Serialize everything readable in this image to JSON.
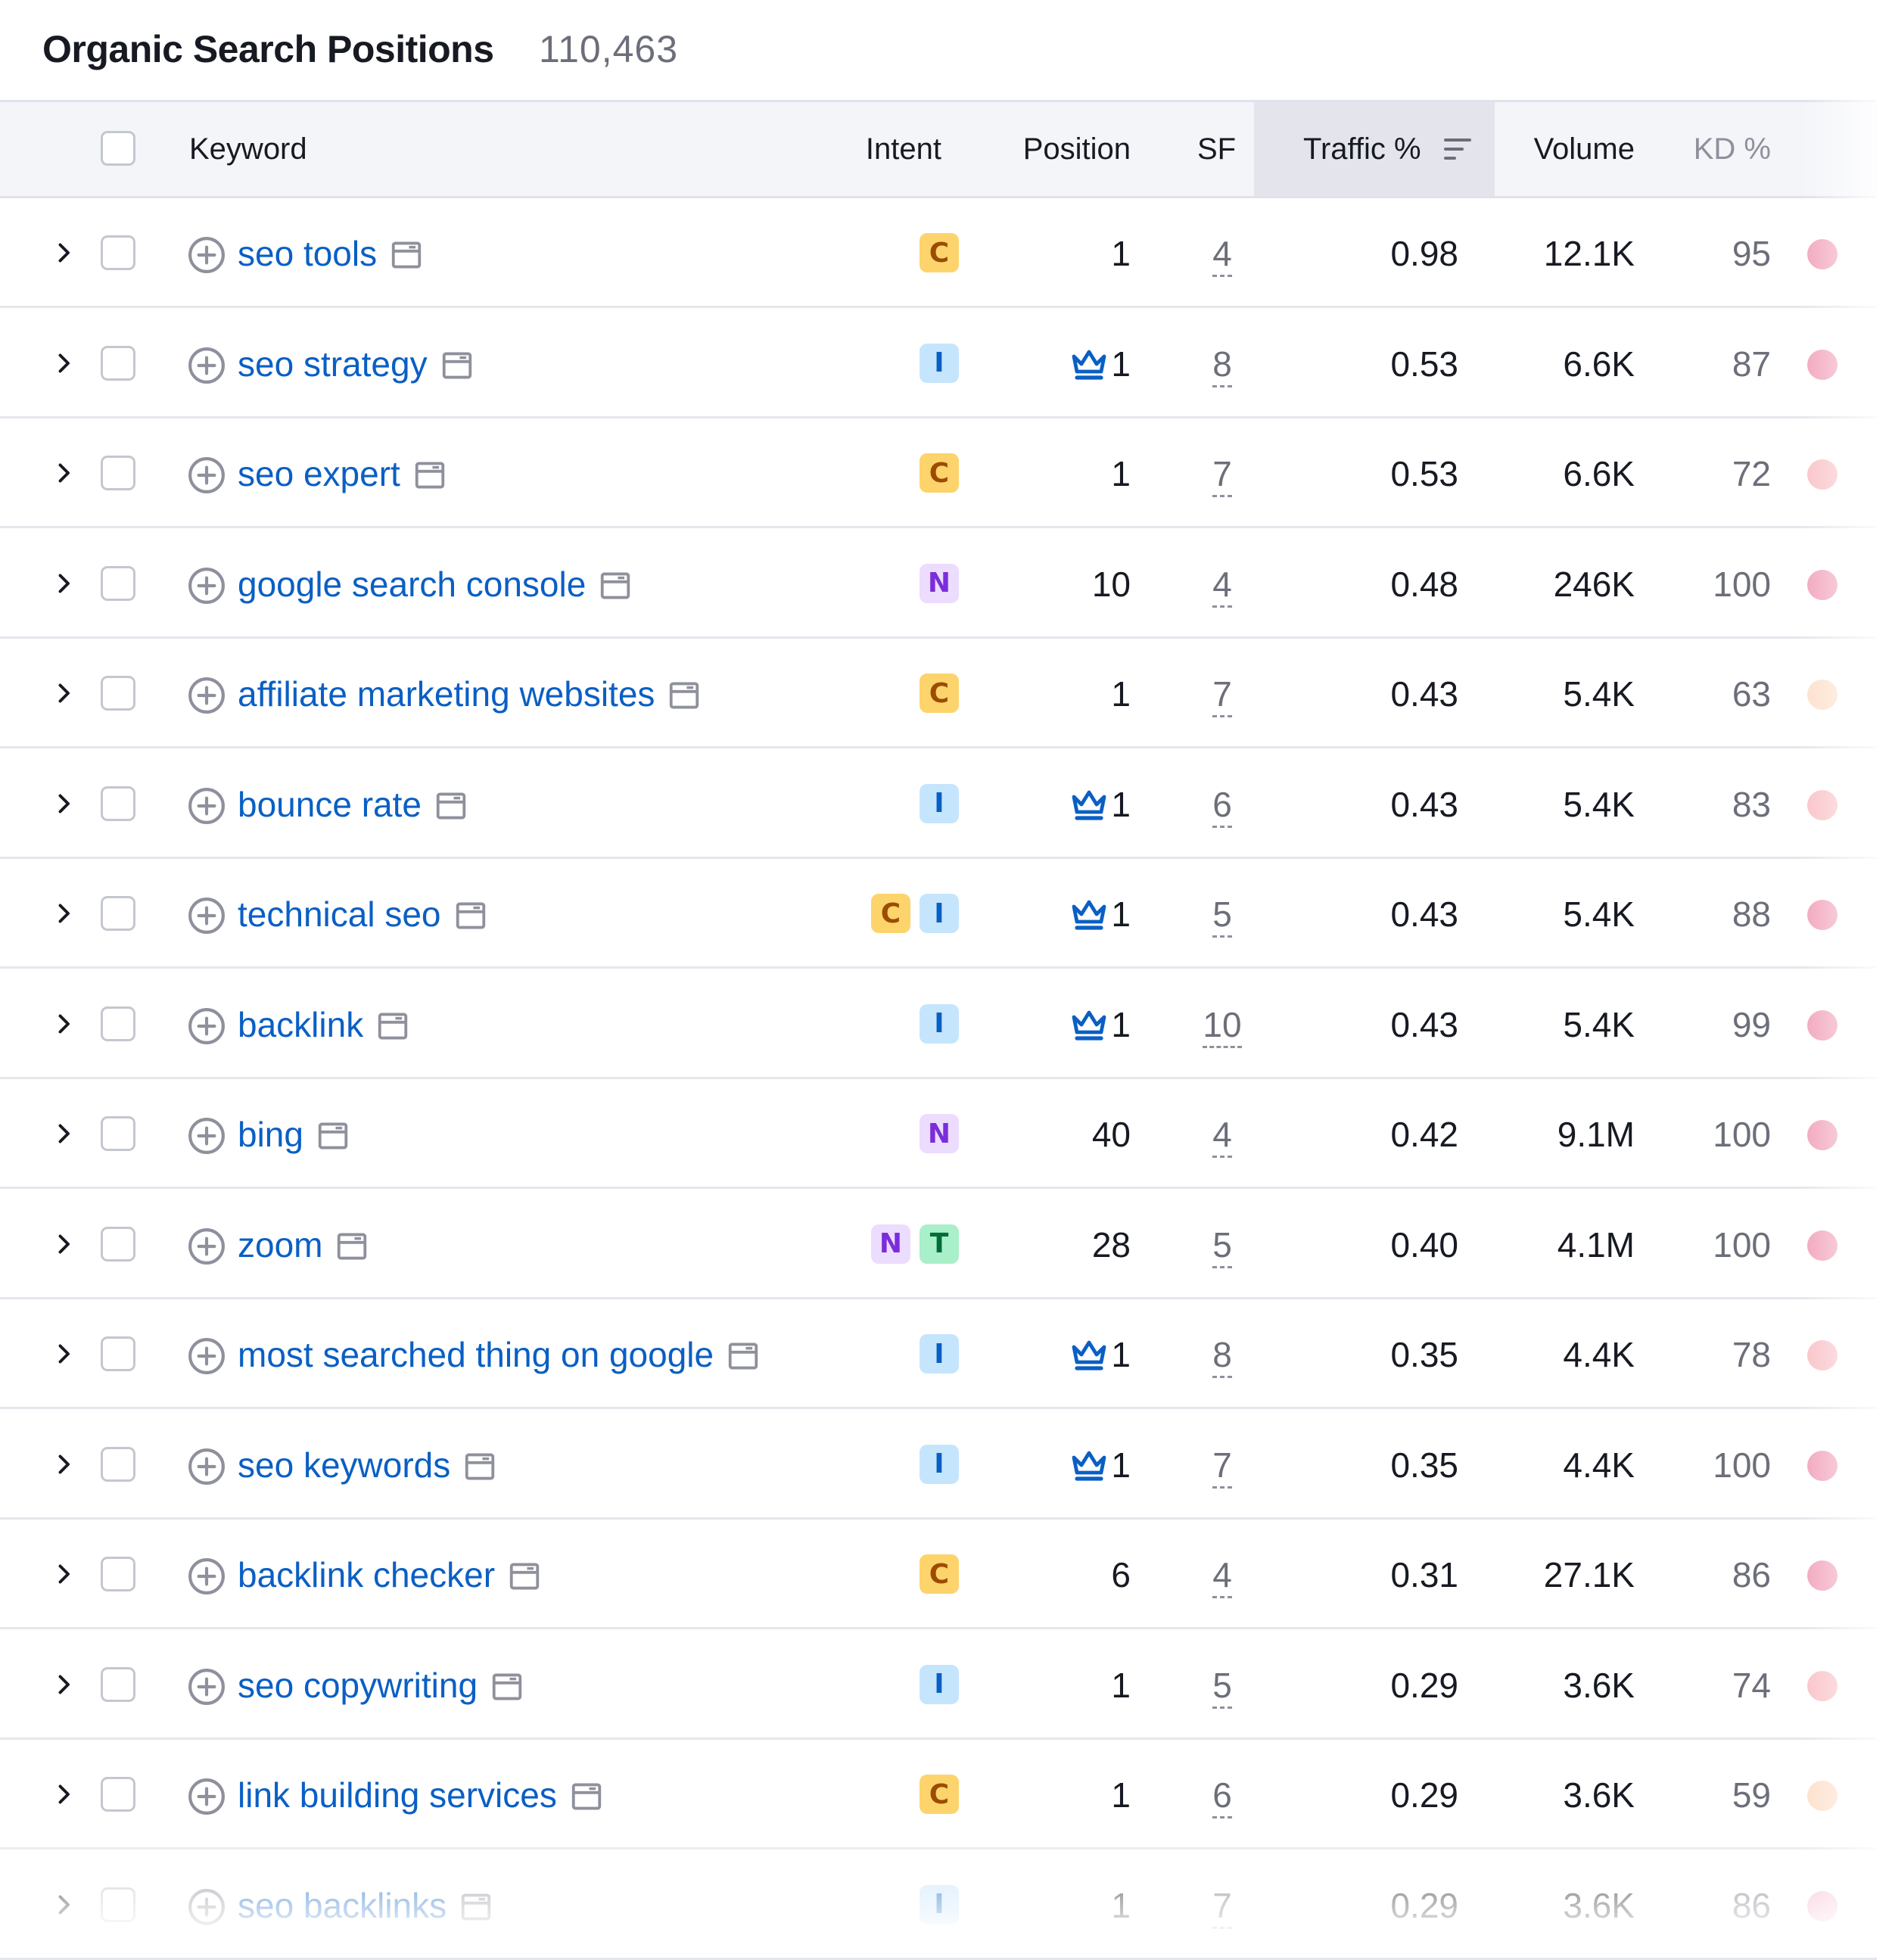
{
  "title": "Organic Search Positions",
  "count": "110,463",
  "columns": {
    "keyword": "Keyword",
    "intent": "Intent",
    "position": "Position",
    "sf": "SF",
    "traffic": "Traffic %",
    "volume": "Volume",
    "kd": "KD %"
  },
  "sorted_column": "traffic",
  "kd_colors": {
    "very_hard": "#f2a6bd",
    "hard": "#f9c3c8",
    "medium": "#fde0cc"
  },
  "rows": [
    {
      "keyword": "seo tools",
      "intents": [
        "C"
      ],
      "crown": false,
      "position": "1",
      "sf": "4",
      "traffic": "0.98",
      "volume": "12.1K",
      "kd": "95",
      "kd_level": "very_hard"
    },
    {
      "keyword": "seo strategy",
      "intents": [
        "I"
      ],
      "crown": true,
      "position": "1",
      "sf": "8",
      "traffic": "0.53",
      "volume": "6.6K",
      "kd": "87",
      "kd_level": "very_hard"
    },
    {
      "keyword": "seo expert",
      "intents": [
        "C"
      ],
      "crown": false,
      "position": "1",
      "sf": "7",
      "traffic": "0.53",
      "volume": "6.6K",
      "kd": "72",
      "kd_level": "hard"
    },
    {
      "keyword": "google search console",
      "intents": [
        "N"
      ],
      "crown": false,
      "position": "10",
      "sf": "4",
      "traffic": "0.48",
      "volume": "246K",
      "kd": "100",
      "kd_level": "very_hard"
    },
    {
      "keyword": "affiliate marketing websites",
      "intents": [
        "C"
      ],
      "crown": false,
      "position": "1",
      "sf": "7",
      "traffic": "0.43",
      "volume": "5.4K",
      "kd": "63",
      "kd_level": "medium"
    },
    {
      "keyword": "bounce rate",
      "intents": [
        "I"
      ],
      "crown": true,
      "position": "1",
      "sf": "6",
      "traffic": "0.43",
      "volume": "5.4K",
      "kd": "83",
      "kd_level": "hard"
    },
    {
      "keyword": "technical seo",
      "intents": [
        "C",
        "I"
      ],
      "crown": true,
      "position": "1",
      "sf": "5",
      "traffic": "0.43",
      "volume": "5.4K",
      "kd": "88",
      "kd_level": "very_hard"
    },
    {
      "keyword": "backlink",
      "intents": [
        "I"
      ],
      "crown": true,
      "position": "1",
      "sf": "10",
      "traffic": "0.43",
      "volume": "5.4K",
      "kd": "99",
      "kd_level": "very_hard"
    },
    {
      "keyword": "bing",
      "intents": [
        "N"
      ],
      "crown": false,
      "position": "40",
      "sf": "4",
      "traffic": "0.42",
      "volume": "9.1M",
      "kd": "100",
      "kd_level": "very_hard"
    },
    {
      "keyword": "zoom",
      "intents": [
        "N",
        "T"
      ],
      "crown": false,
      "position": "28",
      "sf": "5",
      "traffic": "0.40",
      "volume": "4.1M",
      "kd": "100",
      "kd_level": "very_hard"
    },
    {
      "keyword": "most searched thing on google",
      "intents": [
        "I"
      ],
      "crown": true,
      "position": "1",
      "sf": "8",
      "traffic": "0.35",
      "volume": "4.4K",
      "kd": "78",
      "kd_level": "hard"
    },
    {
      "keyword": "seo keywords",
      "intents": [
        "I"
      ],
      "crown": true,
      "position": "1",
      "sf": "7",
      "traffic": "0.35",
      "volume": "4.4K",
      "kd": "100",
      "kd_level": "very_hard"
    },
    {
      "keyword": "backlink checker",
      "intents": [
        "C"
      ],
      "crown": false,
      "position": "6",
      "sf": "4",
      "traffic": "0.31",
      "volume": "27.1K",
      "kd": "86",
      "kd_level": "very_hard"
    },
    {
      "keyword": "seo copywriting",
      "intents": [
        "I"
      ],
      "crown": false,
      "position": "1",
      "sf": "5",
      "traffic": "0.29",
      "volume": "3.6K",
      "kd": "74",
      "kd_level": "hard"
    },
    {
      "keyword": "link building services",
      "intents": [
        "C"
      ],
      "crown": false,
      "position": "1",
      "sf": "6",
      "traffic": "0.29",
      "volume": "3.6K",
      "kd": "59",
      "kd_level": "medium"
    },
    {
      "keyword": "seo backlinks",
      "intents": [
        "I"
      ],
      "crown": false,
      "position": "1",
      "sf": "7",
      "traffic": "0.29",
      "volume": "3.6K",
      "kd": "86",
      "kd_level": "very_hard"
    }
  ]
}
